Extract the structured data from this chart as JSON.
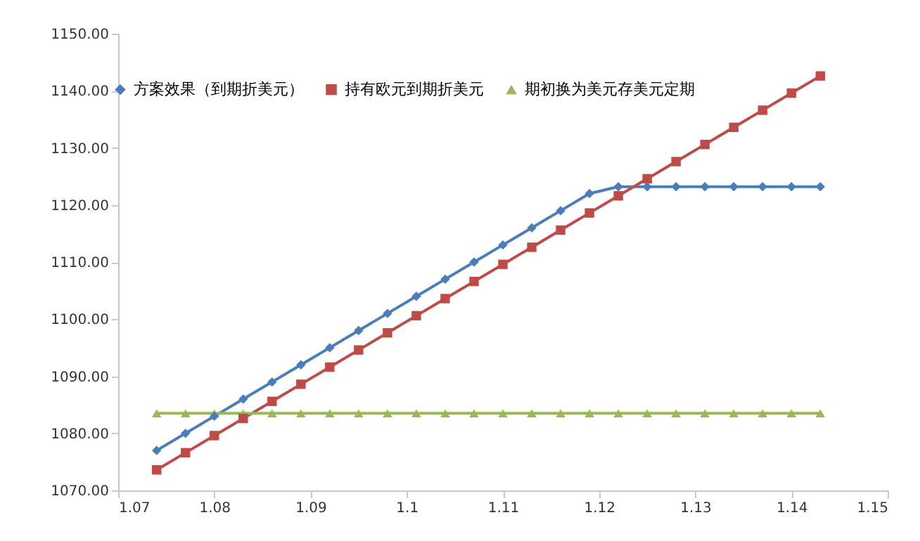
{
  "chart_data": {
    "type": "line",
    "x": [
      1.074,
      1.077,
      1.08,
      1.083,
      1.086,
      1.089,
      1.092,
      1.095,
      1.098,
      1.101,
      1.104,
      1.107,
      1.11,
      1.113,
      1.116,
      1.119,
      1.122,
      1.125,
      1.128,
      1.131,
      1.134,
      1.137,
      1.14,
      1.143
    ],
    "series": [
      {
        "name": "方案效果（到期折美元）",
        "color": "#4a7ebb",
        "marker": "diamond",
        "values": [
          1077,
          1080,
          1083,
          1086,
          1089,
          1092,
          1095,
          1098,
          1101,
          1104,
          1107,
          1110,
          1113,
          1116,
          1119,
          1122,
          1123.2,
          1123.2,
          1123.2,
          1123.2,
          1123.2,
          1123.2,
          1123.2,
          1123.2
        ]
      },
      {
        "name": "持有欧元到期折美元",
        "color": "#be4b48",
        "marker": "square",
        "values": [
          1073.6,
          1076.6,
          1079.6,
          1082.6,
          1085.6,
          1088.6,
          1091.6,
          1094.6,
          1097.6,
          1100.6,
          1103.6,
          1106.6,
          1109.6,
          1112.6,
          1115.6,
          1118.6,
          1121.6,
          1124.6,
          1127.6,
          1130.6,
          1133.6,
          1136.6,
          1139.6,
          1142.6
        ]
      },
      {
        "name": "期初换为美元存美元定期",
        "color": "#98b954",
        "marker": "triangle",
        "values": [
          1083.5,
          1083.5,
          1083.5,
          1083.5,
          1083.5,
          1083.5,
          1083.5,
          1083.5,
          1083.5,
          1083.5,
          1083.5,
          1083.5,
          1083.5,
          1083.5,
          1083.5,
          1083.5,
          1083.5,
          1083.5,
          1083.5,
          1083.5,
          1083.5,
          1083.5,
          1083.5,
          1083.5
        ]
      }
    ],
    "xlim": [
      1.07,
      1.15
    ],
    "xticks": [
      1.07,
      1.08,
      1.09,
      1.1,
      1.11,
      1.12,
      1.13,
      1.14,
      1.15
    ],
    "ylim": [
      1070,
      1150
    ],
    "yticks": [
      {
        "value": 1070,
        "label": "1070.00"
      },
      {
        "value": 1080,
        "label": "1080.00"
      },
      {
        "value": 1090,
        "label": "1090.00"
      },
      {
        "value": 1100,
        "label": "1100.00"
      },
      {
        "value": 1110,
        "label": "1110.00"
      },
      {
        "value": 1120,
        "label": "1120.00"
      },
      {
        "value": 1130,
        "label": "1130.00"
      },
      {
        "value": 1140,
        "label": "1140.00"
      },
      {
        "value": 1150,
        "label": "1150.00"
      }
    ],
    "grid": false,
    "legend": "top left",
    "line_style": "solid"
  }
}
